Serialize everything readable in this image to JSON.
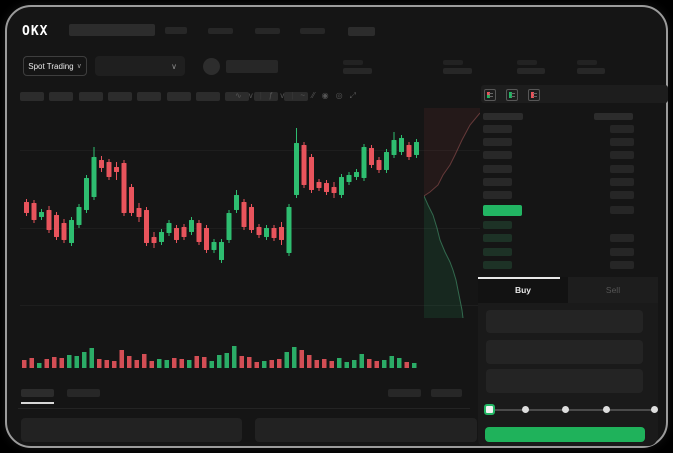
{
  "app": {
    "logo_text": "OKX"
  },
  "market_selector": {
    "label": "Spot Trading",
    "chevron": "∨"
  },
  "pair_dropdown": {
    "chevron": "∨"
  },
  "chart_toolbar": {
    "icons": [
      {
        "name": "candle-style-icon",
        "glyph": "∿"
      },
      {
        "name": "candle-style-chevron-icon",
        "glyph": "v"
      },
      {
        "name": "divider",
        "glyph": "|"
      },
      {
        "name": "indicators-icon",
        "glyph": "ƒ"
      },
      {
        "name": "indicators-chevron-icon",
        "glyph": "v"
      },
      {
        "name": "divider",
        "glyph": "|"
      },
      {
        "name": "line-tool-icon",
        "glyph": "~"
      },
      {
        "name": "draw-tool-icon",
        "glyph": "⁄⁄"
      },
      {
        "name": "snapshot-icon",
        "glyph": "◉"
      },
      {
        "name": "settings-icon",
        "glyph": "◎"
      },
      {
        "name": "fullscreen-icon",
        "glyph": "⤢"
      }
    ]
  },
  "order_book": {
    "view_modes": [
      "book-both",
      "book-buy",
      "book-sell"
    ],
    "asks_amount_flags": [
      1,
      1,
      1,
      1,
      1,
      1
    ],
    "price_row_amount": 1,
    "bids_amount_flags": [
      0,
      1,
      1,
      1
    ],
    "last_price_highlight": "green"
  },
  "trade_panel": {
    "tabs": {
      "buy": "Buy",
      "sell": "Sell"
    },
    "slider_percent": 0,
    "slider_stops": 5
  },
  "colors": {
    "green": "#22b563",
    "candle_green": "#2ebd70",
    "candle_red": "#e8545c",
    "bid_row_green": "#1d3226",
    "accent_button": "#1fb25b"
  },
  "chart_data": {
    "type": "candlestick",
    "title": "",
    "xlabel": "",
    "ylabel": "",
    "axis_labels_visible": false,
    "ylim": [
      55,
      230
    ],
    "grid_values": [
      180,
      102,
      25
    ],
    "candles_ohlc": [
      [
        128,
        131,
        114,
        117
      ],
      [
        127,
        130,
        107,
        110
      ],
      [
        113,
        121,
        110,
        118
      ],
      [
        120,
        124,
        97,
        100
      ],
      [
        115,
        118,
        90,
        93
      ],
      [
        107,
        111,
        87,
        90
      ],
      [
        87,
        113,
        84,
        110
      ],
      [
        105,
        126,
        102,
        123
      ],
      [
        120,
        155,
        117,
        152
      ],
      [
        133,
        183,
        130,
        173
      ],
      [
        170,
        174,
        158,
        162
      ],
      [
        168,
        171,
        150,
        153
      ],
      [
        163,
        168,
        150,
        158
      ],
      [
        167,
        170,
        114,
        117
      ],
      [
        143,
        146,
        114,
        117
      ],
      [
        122,
        127,
        108,
        113
      ],
      [
        120,
        123,
        84,
        87
      ],
      [
        93,
        98,
        82,
        87
      ],
      [
        88,
        101,
        85,
        98
      ],
      [
        97,
        110,
        94,
        107
      ],
      [
        102,
        105,
        87,
        90
      ],
      [
        103,
        106,
        90,
        93
      ],
      [
        98,
        113,
        95,
        110
      ],
      [
        107,
        110,
        85,
        88
      ],
      [
        102,
        105,
        77,
        80
      ],
      [
        80,
        91,
        77,
        88
      ],
      [
        70,
        91,
        67,
        88
      ],
      [
        90,
        120,
        87,
        117
      ],
      [
        120,
        140,
        117,
        135
      ],
      [
        128,
        131,
        100,
        103
      ],
      [
        123,
        126,
        97,
        100
      ],
      [
        103,
        106,
        92,
        95
      ],
      [
        93,
        105,
        90,
        102
      ],
      [
        102,
        105,
        89,
        92
      ],
      [
        103,
        108,
        85,
        90
      ],
      [
        77,
        126,
        74,
        123
      ],
      [
        135,
        202,
        132,
        187
      ],
      [
        185,
        188,
        142,
        145
      ],
      [
        173,
        176,
        137,
        140
      ],
      [
        148,
        151,
        139,
        142
      ],
      [
        147,
        150,
        135,
        138
      ],
      [
        143,
        148,
        132,
        137
      ],
      [
        135,
        156,
        132,
        153
      ],
      [
        148,
        158,
        145,
        155
      ],
      [
        153,
        161,
        150,
        158
      ],
      [
        152,
        186,
        149,
        183
      ],
      [
        182,
        185,
        162,
        165
      ],
      [
        170,
        173,
        157,
        160
      ],
      [
        160,
        181,
        157,
        178
      ],
      [
        175,
        198,
        172,
        190
      ],
      [
        178,
        195,
        175,
        192
      ],
      [
        185,
        188,
        170,
        173
      ],
      [
        175,
        191,
        172,
        188
      ]
    ],
    "volume": [
      8,
      10,
      5,
      9,
      11,
      10,
      13,
      12,
      16,
      20,
      9,
      8,
      7,
      18,
      12,
      8,
      14,
      7,
      9,
      8,
      10,
      9,
      8,
      12,
      11,
      7,
      13,
      15,
      22,
      12,
      11,
      6,
      7,
      8,
      9,
      16,
      21,
      18,
      13,
      8,
      9,
      7,
      10,
      6,
      8,
      14,
      9,
      7,
      8,
      12,
      10,
      6,
      5
    ]
  },
  "depth_chart": {
    "asks_line": [
      [
        56,
        5
      ],
      [
        46,
        17
      ],
      [
        38,
        32
      ],
      [
        31,
        47
      ],
      [
        26,
        57
      ],
      [
        19,
        67
      ],
      [
        14,
        77
      ],
      [
        6,
        84
      ],
      [
        0,
        88
      ]
    ],
    "bids_line": [
      [
        0,
        88
      ],
      [
        4,
        97
      ],
      [
        9,
        107
      ],
      [
        13,
        120
      ],
      [
        16,
        132
      ],
      [
        21,
        144
      ],
      [
        26,
        154
      ],
      [
        29,
        162
      ],
      [
        32,
        172
      ],
      [
        34,
        182
      ],
      [
        36,
        192
      ],
      [
        38,
        202
      ],
      [
        39,
        210
      ]
    ]
  }
}
